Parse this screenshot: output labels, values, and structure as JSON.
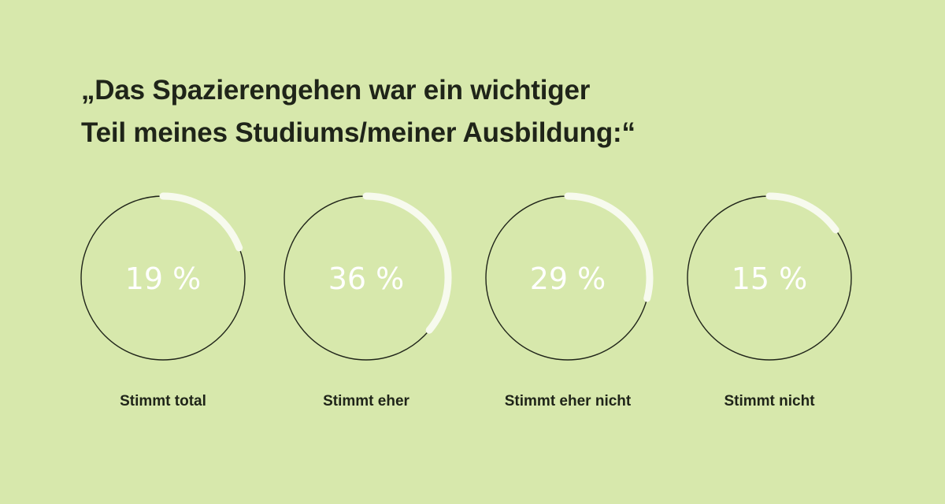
{
  "title": {
    "line1": "„Das Spazierengehen war ein wichtiger",
    "line2": "Teil meines Studiums/meiner Ausbildung:“"
  },
  "chart_data": {
    "type": "donut-progress",
    "unit": "%",
    "categories": [
      "Stimmt total",
      "Stimmt eher",
      "Stimmt eher nicht",
      "Stimmt nicht"
    ],
    "values": [
      19,
      36,
      29,
      15
    ],
    "labels": [
      "19 %",
      "36 %",
      "29 %",
      "15 %"
    ],
    "max": 100
  },
  "colors": {
    "background": "#d7e8ac",
    "ring_outline": "#1f2419",
    "progress_arc": "#f7faee",
    "value_text": "#ffffff",
    "text": "#1f2419"
  }
}
